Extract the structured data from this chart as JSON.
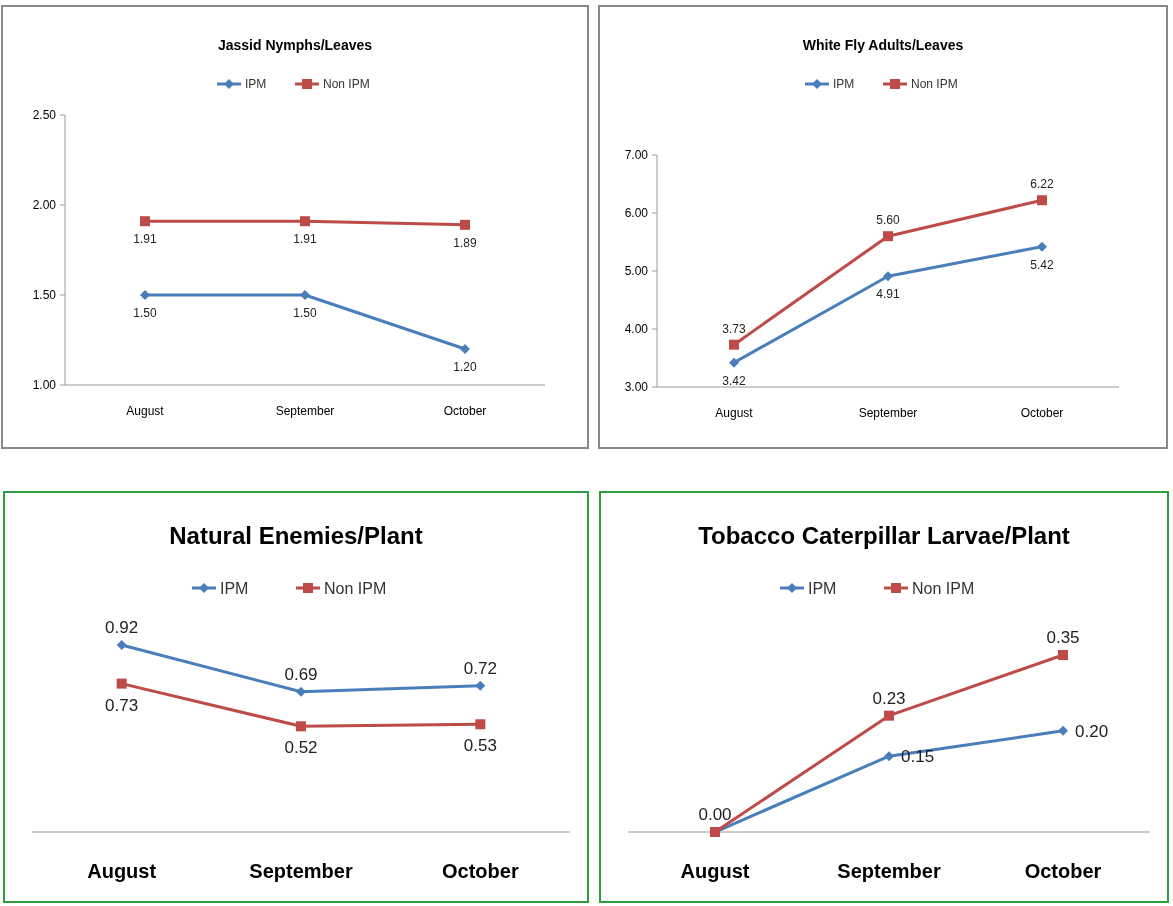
{
  "chart_data": [
    {
      "type": "line",
      "title": "Jassid Nymphs/Leaves",
      "categories": [
        "August",
        "September",
        "October"
      ],
      "ylim": [
        1,
        2.5
      ],
      "yticks": [
        {
          "value": 1,
          "label": "1.00"
        },
        {
          "value": 1.5,
          "label": "1.50"
        },
        {
          "value": 2,
          "label": "2.00"
        },
        {
          "value": 2.5,
          "label": "2.50"
        }
      ],
      "legend": "top",
      "grid": false,
      "series": [
        {
          "name": "IPM",
          "color": "#4a7ebb",
          "marker": "diamond",
          "values": [
            1.5,
            1.5,
            1.2
          ],
          "value_labels": [
            "1.50",
            "1.50",
            "1.20"
          ]
        },
        {
          "name": "Non IPM",
          "color": "#be4b48",
          "marker": "square",
          "values": [
            1.91,
            1.91,
            1.89
          ],
          "value_labels": [
            "1.91",
            "1.91",
            "1.89"
          ]
        }
      ]
    },
    {
      "type": "line",
      "title": "White Fly Adults/Leaves",
      "categories": [
        "August",
        "September",
        "October"
      ],
      "ylim": [
        3,
        7
      ],
      "yticks": [
        {
          "value": 3,
          "label": "3.00"
        },
        {
          "value": 4,
          "label": "4.00"
        },
        {
          "value": 5,
          "label": "5.00"
        },
        {
          "value": 6,
          "label": "6.00"
        },
        {
          "value": 7,
          "label": "7.00"
        }
      ],
      "legend": "top",
      "grid": false,
      "series": [
        {
          "name": "IPM",
          "color": "#4a7ebb",
          "marker": "diamond",
          "values": [
            3.42,
            4.91,
            5.42
          ],
          "value_labels": [
            "3.42",
            "4.91",
            "5.42"
          ]
        },
        {
          "name": "Non IPM",
          "color": "#be4b48",
          "marker": "square",
          "values": [
            3.73,
            5.6,
            6.22
          ],
          "value_labels": [
            "3.73",
            "5.60",
            "6.22"
          ]
        }
      ]
    },
    {
      "type": "line",
      "title": "Natural Enemies/Plant",
      "categories": [
        "August",
        "September",
        "October"
      ],
      "legend": "top",
      "grid": false,
      "tick_labels": "x",
      "series": [
        {
          "name": "IPM",
          "color": "#4a7ebb",
          "marker": "diamond",
          "values": [
            0.92,
            0.69,
            0.72
          ],
          "value_labels": [
            "0.92",
            "0.69",
            "0.72"
          ]
        },
        {
          "name": "Non IPM",
          "color": "#be4b48",
          "marker": "square",
          "values": [
            0.73,
            0.52,
            0.53
          ],
          "value_labels": [
            "0.73",
            "0.52",
            "0.53"
          ]
        }
      ]
    },
    {
      "type": "line",
      "title": "Tobacco Caterpillar Larvae/Plant",
      "categories": [
        "August",
        "September",
        "October"
      ],
      "legend": "top",
      "grid": false,
      "tick_labels": "x",
      "series": [
        {
          "name": "IPM",
          "color": "#4a7ebb",
          "marker": "diamond",
          "values": [
            0,
            0.15,
            0.2
          ],
          "value_labels": [
            null,
            "0.15",
            "0.20"
          ]
        },
        {
          "name": "Non IPM",
          "color": "#be4b48",
          "marker": "square",
          "values": [
            0,
            0.23,
            0.35
          ],
          "value_labels": [
            "0.00",
            "0.23",
            "0.35"
          ]
        }
      ]
    }
  ]
}
